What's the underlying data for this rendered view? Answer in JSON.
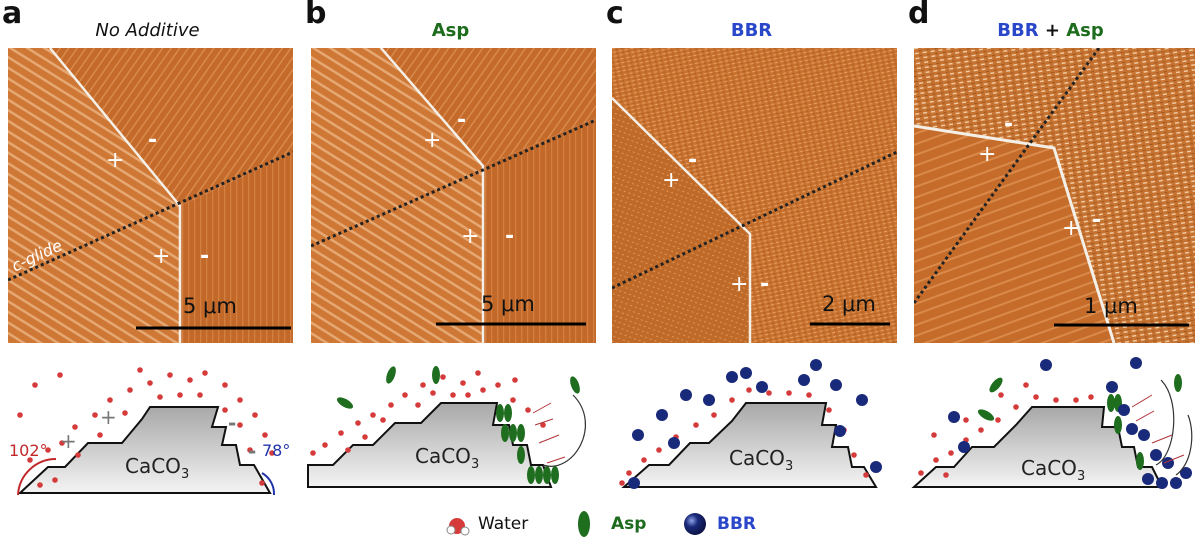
{
  "panels": [
    {
      "letter": "a",
      "title": "No Additive",
      "title_color": "#111111",
      "scale": "5 μm",
      "labels": {
        "glide": "c-glide",
        "plus": "+",
        "minus": "-"
      },
      "scheme": {
        "substrate": "CaCO3",
        "angle_obtuse": "102°",
        "angle_acute": "78°"
      }
    },
    {
      "letter": "b",
      "title": "Asp",
      "title_color": "#1d6b1d",
      "scale": "5 μm",
      "labels": {
        "plus": "+",
        "minus": "-"
      },
      "scheme": {
        "substrate": "CaCO3"
      }
    },
    {
      "letter": "c",
      "title": "BBR",
      "title_color": "#2a47c9",
      "scale": "2 μm",
      "labels": {
        "plus": "+",
        "minus": "-"
      },
      "scheme": {
        "substrate": "CaCO3"
      }
    },
    {
      "letter": "d",
      "title_part1": "BBR",
      "title_join": " + ",
      "title_part2": "Asp",
      "scale": "1 μm",
      "labels": {
        "plus": "+",
        "minus": "-"
      },
      "scheme": {
        "substrate": "CaCO3"
      }
    }
  ],
  "legend": {
    "water": "Water",
    "asp": "Asp",
    "bbr": "BBR"
  },
  "colors": {
    "afm_base": "#c8702f",
    "water": "#d63b3b",
    "asp": "#1f6d1f",
    "bbr": "#1a2a7a",
    "blue_text": "#2a47c9",
    "green_text": "#1d6b1d"
  }
}
